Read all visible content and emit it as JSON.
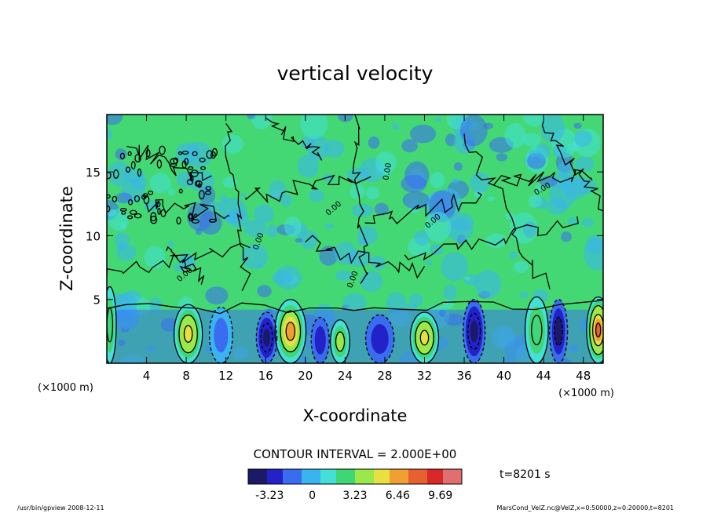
{
  "chart_data": {
    "type": "heatmap",
    "title": "vertical velocity",
    "xlabel": "X-coordinate",
    "ylabel": "Z-coordinate",
    "x_unit_left": "(×1000 m)",
    "x_unit_right": "(×1000 m)",
    "xlim": [
      0,
      50
    ],
    "ylim": [
      0,
      19.5
    ],
    "x_ticks": [
      4,
      8,
      12,
      16,
      20,
      24,
      28,
      32,
      36,
      40,
      44,
      48
    ],
    "y_ticks": [
      5,
      10,
      15
    ],
    "grid": false,
    "contour_interval_text": "CONTOUR INTERVAL = 2.000E+00",
    "contour_label": "0.00",
    "time_label": "t=8201 s",
    "colorbar": {
      "min": -4.85,
      "max": 11.31,
      "ticks": [
        "-3.23",
        "0",
        "3.23",
        "6.46",
        "9.69"
      ],
      "tick_values": [
        -3.23,
        0,
        3.23,
        6.46,
        9.69
      ],
      "colors": [
        "#1a1a66",
        "#2222c8",
        "#3a6cf0",
        "#3ab4f0",
        "#44e0d8",
        "#3fd676",
        "#9ae84a",
        "#e8e040",
        "#f0a030",
        "#e86030",
        "#d82828",
        "#e07070"
      ]
    },
    "features": [
      {
        "x": 8.2,
        "z": 2.3,
        "w": 2.2,
        "type": "updraft",
        "peak": 5.5
      },
      {
        "x": 18.5,
        "z": 2.5,
        "w": 2.4,
        "type": "updraft",
        "peak": 6.5
      },
      {
        "x": 23.5,
        "z": 1.7,
        "w": 1.5,
        "type": "updraft",
        "peak": 4.0
      },
      {
        "x": 32.0,
        "z": 2.0,
        "w": 2.2,
        "type": "updraft",
        "peak": 5.5
      },
      {
        "x": 43.3,
        "z": 2.6,
        "w": 1.8,
        "type": "updraft",
        "peak": 3.0
      },
      {
        "x": 49.5,
        "z": 2.6,
        "w": 1.8,
        "type": "updraft",
        "peak": 8.0
      },
      {
        "x": 0.3,
        "z": 3.0,
        "w": 1.0,
        "type": "updraft",
        "peak": 3.0
      },
      {
        "x": 16.1,
        "z": 2.0,
        "w": 1.6,
        "type": "downdraft",
        "peak": -4.5
      },
      {
        "x": 21.5,
        "z": 1.8,
        "w": 1.4,
        "type": "downdraft",
        "peak": -2.5
      },
      {
        "x": 27.5,
        "z": 1.9,
        "w": 2.2,
        "type": "downdraft",
        "peak": -2.5
      },
      {
        "x": 37.0,
        "z": 2.5,
        "w": 1.7,
        "type": "downdraft",
        "peak": -4.5
      },
      {
        "x": 45.5,
        "z": 2.5,
        "w": 1.4,
        "type": "downdraft",
        "peak": -4.0
      },
      {
        "x": 11.5,
        "z": 2.2,
        "w": 1.8,
        "type": "downdraft",
        "peak": -1.5
      }
    ]
  },
  "footer": {
    "left": "/usr/bin/gpview   2008-12-11",
    "right": "MarsCond_VelZ.nc@VelZ,x=0:50000,z=0:20000,t=8201"
  }
}
